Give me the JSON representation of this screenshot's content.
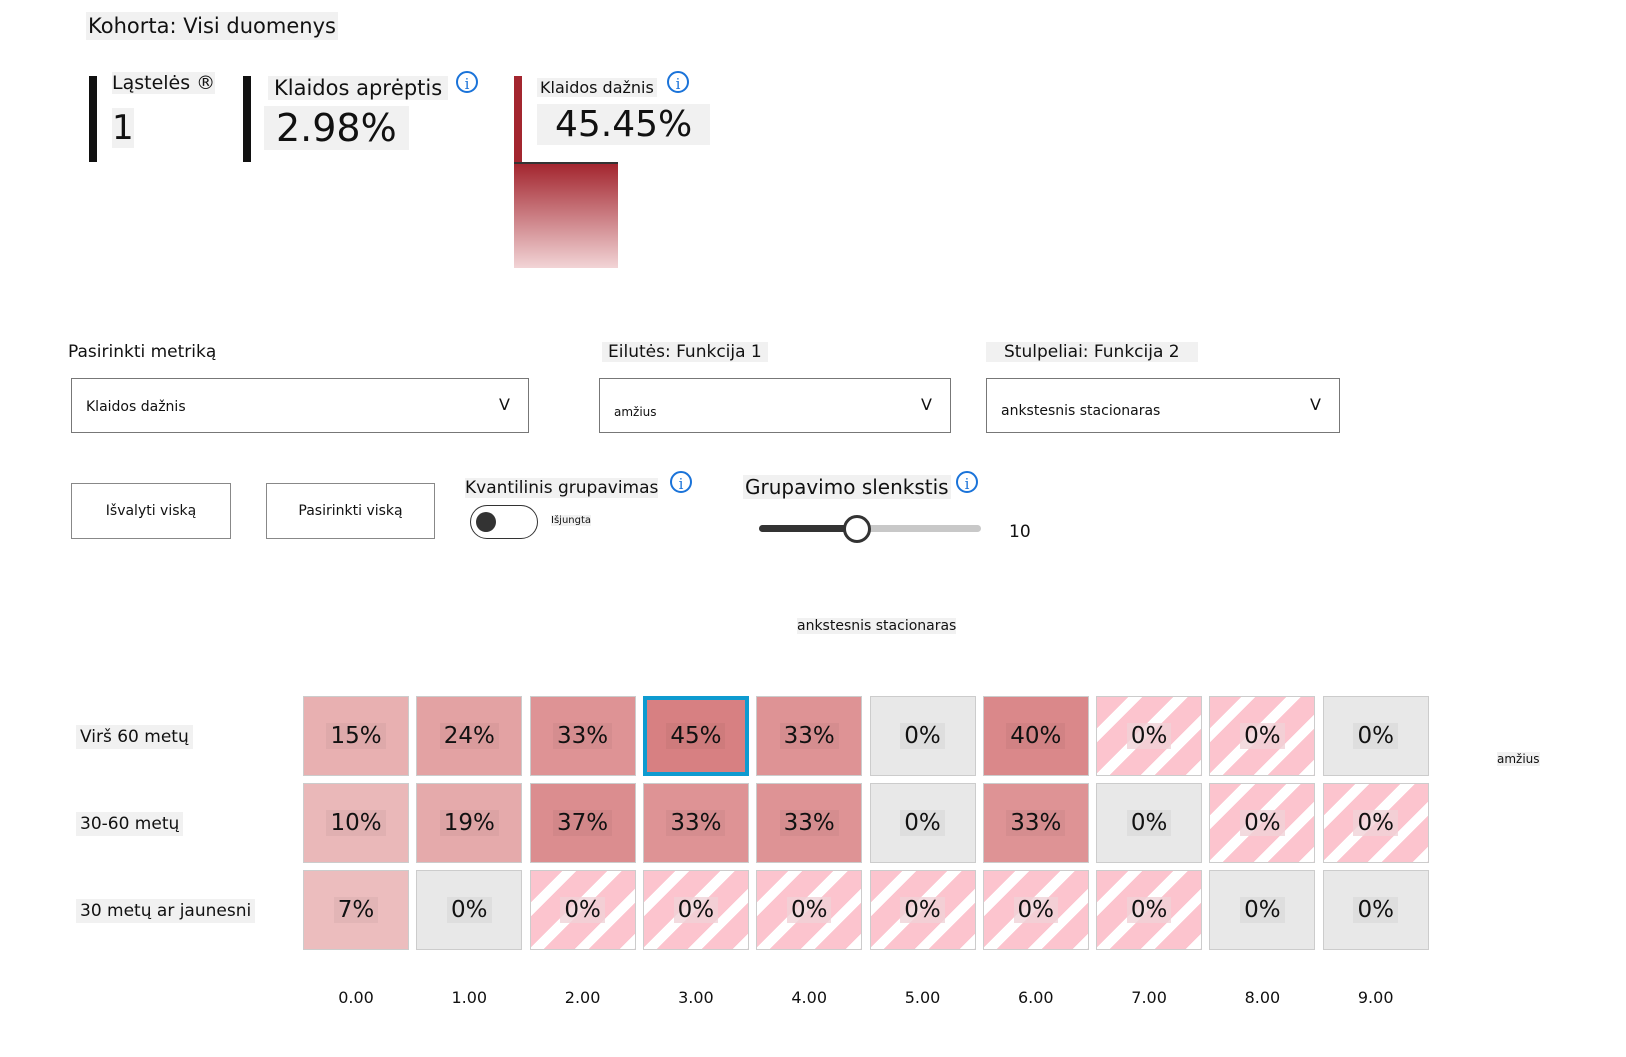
{
  "cohort": {
    "title": "Kohorta: Visi duomenys"
  },
  "metrics": {
    "cells": {
      "label": "Ląstelės ®",
      "value": "1"
    },
    "error_coverage": {
      "label": "Klaidos aprėptis",
      "value": "2.98%"
    },
    "error_rate": {
      "label": "Klaidos dažnis",
      "value": "45.45%",
      "fill_percent": 45.45
    }
  },
  "controls": {
    "metric": {
      "label": "Pasirinkti metriką",
      "value": "Klaidos dažnis",
      "chevron": "V"
    },
    "rows": {
      "label": "Eilutės: Funkcija 1",
      "value": "amžius",
      "chevron": "V"
    },
    "cols": {
      "label": "Stulpeliai: Funkcija 2",
      "value": "ankstesnis stacionaras",
      "chevron": "V"
    },
    "clear_all": "Išvalyti viską",
    "select_all": "Pasirinkti viską",
    "quantile": {
      "label": "Kvantilinis grupavimas",
      "state": "Išjungta",
      "on": false
    },
    "threshold": {
      "label": "Grupavimo slenkstis",
      "value": "10",
      "fraction": 0.44
    }
  },
  "heatmap": {
    "col_title": "ankstesnis stacionaras",
    "row_title": "amžius",
    "rows": [
      "Virš 60 metų",
      "30-60 metų",
      "30 metų ar jaunesni"
    ],
    "cols": [
      "0.00",
      "1.00",
      "2.00",
      "3.00",
      "4.00",
      "5.00",
      "6.00",
      "7.00",
      "8.00",
      "9.00"
    ],
    "colors": {
      "selected_border": "#0e9bd0",
      "empty": "#e8e8e8",
      "stripe": "#fcc4ce"
    },
    "cells": [
      [
        {
          "t": "15%",
          "v": 15,
          "k": "heat"
        },
        {
          "t": "24%",
          "v": 24,
          "k": "heat"
        },
        {
          "t": "33%",
          "v": 33,
          "k": "heat"
        },
        {
          "t": "45%",
          "v": 45,
          "k": "heat",
          "selected": true
        },
        {
          "t": "33%",
          "v": 33,
          "k": "heat"
        },
        {
          "t": "0%",
          "v": 0,
          "k": "gray"
        },
        {
          "t": "40%",
          "v": 40,
          "k": "heat"
        },
        {
          "t": "0%",
          "v": 0,
          "k": "striped"
        },
        {
          "t": "0%",
          "v": 0,
          "k": "striped"
        },
        {
          "t": "0%",
          "v": 0,
          "k": "gray"
        }
      ],
      [
        {
          "t": "10%",
          "v": 10,
          "k": "heat"
        },
        {
          "t": "19%",
          "v": 19,
          "k": "heat"
        },
        {
          "t": "37%",
          "v": 37,
          "k": "heat"
        },
        {
          "t": "33%",
          "v": 33,
          "k": "heat"
        },
        {
          "t": "33%",
          "v": 33,
          "k": "heat"
        },
        {
          "t": "0%",
          "v": 0,
          "k": "gray"
        },
        {
          "t": "33%",
          "v": 33,
          "k": "heat"
        },
        {
          "t": "0%",
          "v": 0,
          "k": "gray"
        },
        {
          "t": "0%",
          "v": 0,
          "k": "striped"
        },
        {
          "t": "0%",
          "v": 0,
          "k": "striped"
        }
      ],
      [
        {
          "t": "7%",
          "v": 7,
          "k": "heat"
        },
        {
          "t": "0%",
          "v": 0,
          "k": "gray"
        },
        {
          "t": "0%",
          "v": 0,
          "k": "striped"
        },
        {
          "t": "0%",
          "v": 0,
          "k": "striped"
        },
        {
          "t": "0%",
          "v": 0,
          "k": "striped"
        },
        {
          "t": "0%",
          "v": 0,
          "k": "striped"
        },
        {
          "t": "0%",
          "v": 0,
          "k": "striped"
        },
        {
          "t": "0%",
          "v": 0,
          "k": "striped"
        },
        {
          "t": "0%",
          "v": 0,
          "k": "gray"
        },
        {
          "t": "0%",
          "v": 0,
          "k": "gray"
        }
      ]
    ]
  }
}
